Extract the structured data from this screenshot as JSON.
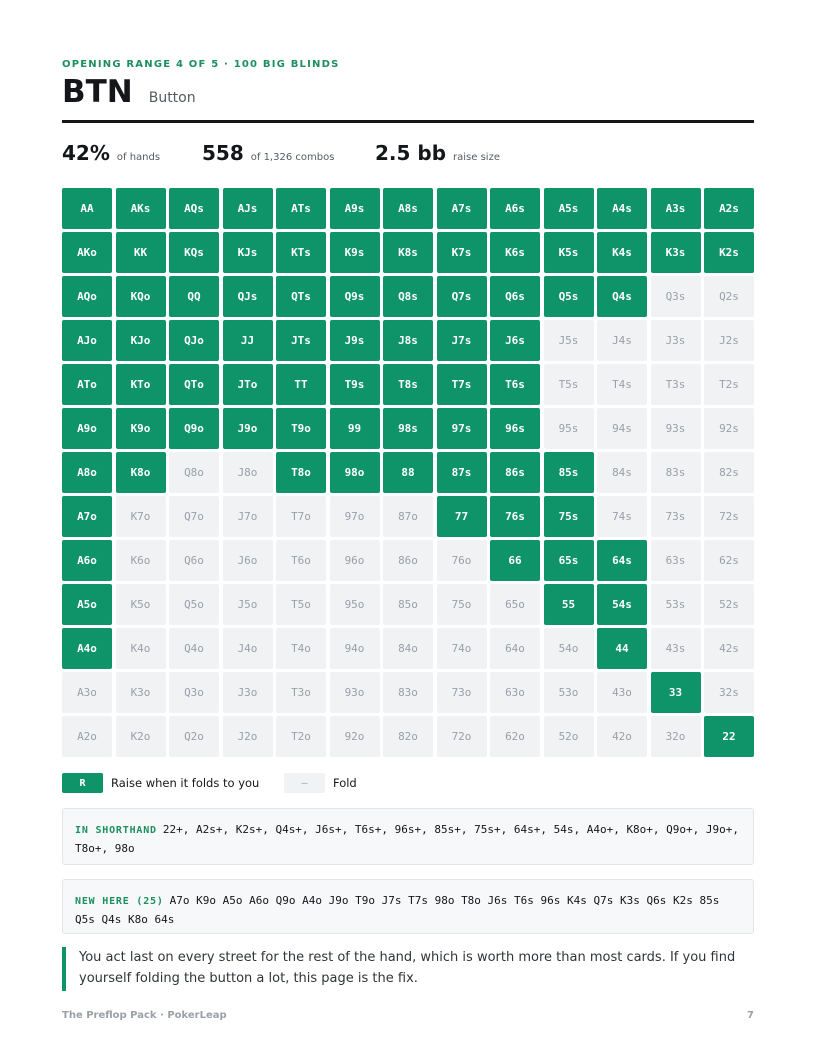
{
  "header": {
    "eyebrow": "OPENING RANGE 4 OF 5 · 100 BIG BLINDS",
    "position_code": "BTN",
    "position_name": "Button"
  },
  "stats": [
    {
      "value": "42%",
      "label": "of hands"
    },
    {
      "value": "558",
      "label": "of 1,326 combos"
    },
    {
      "value": "2.5 bb",
      "label": "raise size"
    }
  ],
  "grid": {
    "rows": [
      [
        "AA",
        "AKs",
        "AQs",
        "AJs",
        "ATs",
        "A9s",
        "A8s",
        "A7s",
        "A6s",
        "A5s",
        "A4s",
        "A3s",
        "A2s"
      ],
      [
        "AKo",
        "KK",
        "KQs",
        "KJs",
        "KTs",
        "K9s",
        "K8s",
        "K7s",
        "K6s",
        "K5s",
        "K4s",
        "K3s",
        "K2s"
      ],
      [
        "AQo",
        "KQo",
        "QQ",
        "QJs",
        "QTs",
        "Q9s",
        "Q8s",
        "Q7s",
        "Q6s",
        "Q5s",
        "Q4s",
        "Q3s",
        "Q2s"
      ],
      [
        "AJo",
        "KJo",
        "QJo",
        "JJ",
        "JTs",
        "J9s",
        "J8s",
        "J7s",
        "J6s",
        "J5s",
        "J4s",
        "J3s",
        "J2s"
      ],
      [
        "ATo",
        "KTo",
        "QTo",
        "JTo",
        "TT",
        "T9s",
        "T8s",
        "T7s",
        "T6s",
        "T5s",
        "T4s",
        "T3s",
        "T2s"
      ],
      [
        "A9o",
        "K9o",
        "Q9o",
        "J9o",
        "T9o",
        "99",
        "98s",
        "97s",
        "96s",
        "95s",
        "94s",
        "93s",
        "92s"
      ],
      [
        "A8o",
        "K8o",
        "Q8o",
        "J8o",
        "T8o",
        "98o",
        "88",
        "87s",
        "86s",
        "85s",
        "84s",
        "83s",
        "82s"
      ],
      [
        "A7o",
        "K7o",
        "Q7o",
        "J7o",
        "T7o",
        "97o",
        "87o",
        "77",
        "76s",
        "75s",
        "74s",
        "73s",
        "72s"
      ],
      [
        "A6o",
        "K6o",
        "Q6o",
        "J6o",
        "T6o",
        "96o",
        "86o",
        "76o",
        "66",
        "65s",
        "64s",
        "63s",
        "62s"
      ],
      [
        "A5o",
        "K5o",
        "Q5o",
        "J5o",
        "T5o",
        "95o",
        "85o",
        "75o",
        "65o",
        "55",
        "54s",
        "53s",
        "52s"
      ],
      [
        "A4o",
        "K4o",
        "Q4o",
        "J4o",
        "T4o",
        "94o",
        "84o",
        "74o",
        "64o",
        "54o",
        "44",
        "43s",
        "42s"
      ],
      [
        "A3o",
        "K3o",
        "Q3o",
        "J3o",
        "T3o",
        "93o",
        "83o",
        "73o",
        "63o",
        "53o",
        "43o",
        "33",
        "32s"
      ],
      [
        "A2o",
        "K2o",
        "Q2o",
        "J2o",
        "T2o",
        "92o",
        "82o",
        "72o",
        "62o",
        "52o",
        "42o",
        "32o",
        "22"
      ]
    ],
    "raise": [
      [
        1,
        1,
        1,
        1,
        1,
        1,
        1,
        1,
        1,
        1,
        1,
        1,
        1
      ],
      [
        1,
        1,
        1,
        1,
        1,
        1,
        1,
        1,
        1,
        1,
        1,
        1,
        1
      ],
      [
        1,
        1,
        1,
        1,
        1,
        1,
        1,
        1,
        1,
        1,
        1,
        0,
        0
      ],
      [
        1,
        1,
        1,
        1,
        1,
        1,
        1,
        1,
        1,
        0,
        0,
        0,
        0
      ],
      [
        1,
        1,
        1,
        1,
        1,
        1,
        1,
        1,
        1,
        0,
        0,
        0,
        0
      ],
      [
        1,
        1,
        1,
        1,
        1,
        1,
        1,
        1,
        1,
        0,
        0,
        0,
        0
      ],
      [
        1,
        1,
        0,
        0,
        1,
        1,
        1,
        1,
        1,
        1,
        0,
        0,
        0
      ],
      [
        1,
        0,
        0,
        0,
        0,
        0,
        0,
        1,
        1,
        1,
        0,
        0,
        0
      ],
      [
        1,
        0,
        0,
        0,
        0,
        0,
        0,
        0,
        1,
        1,
        1,
        0,
        0
      ],
      [
        1,
        0,
        0,
        0,
        0,
        0,
        0,
        0,
        0,
        1,
        1,
        0,
        0
      ],
      [
        1,
        0,
        0,
        0,
        0,
        0,
        0,
        0,
        0,
        0,
        1,
        0,
        0
      ],
      [
        0,
        0,
        0,
        0,
        0,
        0,
        0,
        0,
        0,
        0,
        0,
        1,
        0
      ],
      [
        0,
        0,
        0,
        0,
        0,
        0,
        0,
        0,
        0,
        0,
        0,
        0,
        1
      ]
    ],
    "colors": {
      "raise": "#0e9468",
      "fold": "#f1f2f4"
    }
  },
  "legend": {
    "raise_symbol": "R",
    "raise_label": "Raise when it folds to you",
    "fold_symbol": "–",
    "fold_label": "Fold"
  },
  "shorthand": {
    "tag": "IN SHORTHAND",
    "text": "22+, A2s+, K2s+, Q4s+, J6s+, T6s+, 96s+, 85s+, 75s+, 64s+, 54s, A4o+, K8o+, Q9o+, J9o+, T8o+, 98o"
  },
  "new_here": {
    "tag": "NEW HERE (25)",
    "text": "A7o K9o A5o A6o Q9o A4o J9o T9o J7s T7s 98o T8o J6s T6s 96s K4s Q7s K3s Q6s K2s 85s Q5s Q4s K8o 64s"
  },
  "note": "You act last on every street for the rest of the hand, which is worth more than most cards. If you find yourself folding the button a lot, this page is the fix.",
  "footer": {
    "left": "The Preflop Pack · PokerLeap",
    "page": "7"
  }
}
